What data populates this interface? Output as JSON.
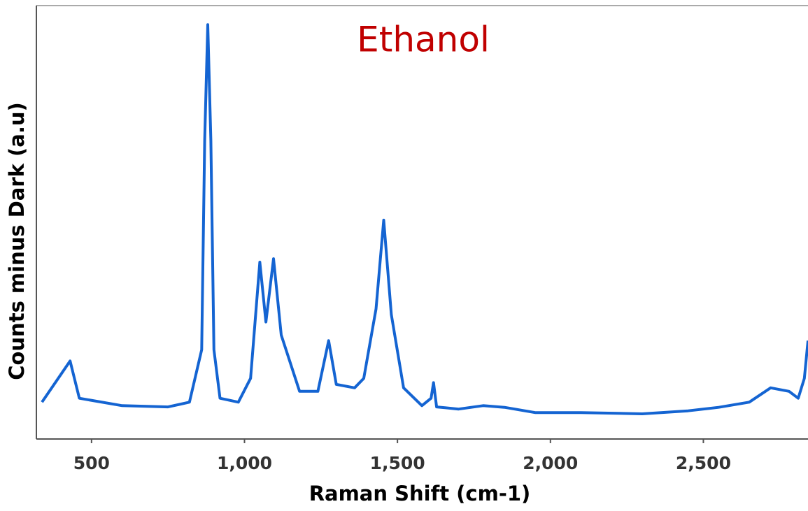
{
  "chart_data": {
    "type": "line",
    "title": "Ethanol",
    "title_color": "#c00000",
    "x_label": "Raman Shift (cm-1)",
    "y_label": "Counts minus Dark (a.u)",
    "xlim": [
      338,
      2842
    ],
    "ylim": [
      0,
      100
    ],
    "xticks": [
      500,
      {
        "value": 1000,
        "label": "1,000"
      },
      {
        "value": 1500,
        "label": "1,500"
      },
      {
        "value": 2000,
        "label": "2,000"
      },
      {
        "value": 2500,
        "label": "2,500"
      }
    ],
    "grid": false,
    "series": [
      {
        "name": "Ethanol",
        "color": "#1464d2",
        "x": [
          338,
          430,
          460,
          600,
          750,
          820,
          860,
          870,
          880,
          890,
          900,
          920,
          980,
          1020,
          1050,
          1070,
          1095,
          1120,
          1180,
          1240,
          1275,
          1300,
          1360,
          1390,
          1430,
          1455,
          1480,
          1520,
          1580,
          1610,
          1618,
          1628,
          1700,
          1780,
          1850,
          1950,
          2100,
          2300,
          2450,
          2550,
          2650,
          2720,
          2780,
          2810,
          2830,
          2842
        ],
        "values": [
          8.5,
          18,
          9.4,
          7.7,
          7.4,
          8.5,
          20.6,
          69,
          95.6,
          69,
          20.6,
          9.4,
          8.5,
          14,
          40.8,
          27,
          41.6,
          24,
          11,
          11,
          22.7,
          12.6,
          11.8,
          14,
          30,
          50.5,
          28.7,
          11.8,
          7.7,
          9.4,
          13,
          7.4,
          6.9,
          7.7,
          7.3,
          6.1,
          6.1,
          5.8,
          6.5,
          7.3,
          8.5,
          11.8,
          11,
          9.4,
          14,
          22.7
        ]
      }
    ]
  }
}
